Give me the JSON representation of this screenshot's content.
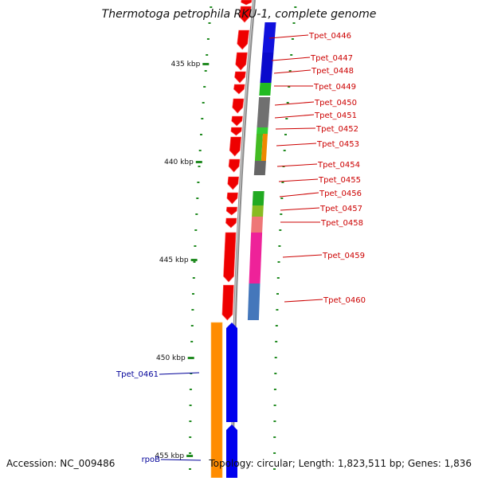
{
  "title": "Thermotoga petrophila RKU-1, complete genome",
  "accession": "Accession: NC_009486",
  "summary": "Topology: circular; Length: 1,823,511 bp; Genes: 1,836",
  "colors": {
    "forward_label": "#cc0000",
    "reverse_label": "#000099",
    "backbone": "#909090",
    "tick": "#228b22"
  },
  "ticks": [
    {
      "label": "435 kbp"
    },
    {
      "label": "440 kbp"
    },
    {
      "label": "445 kbp"
    },
    {
      "label": "450 kbp"
    },
    {
      "label": "455 kbp"
    }
  ],
  "forward_genes": [
    {
      "label": "Tpet_0446"
    },
    {
      "label": "Tpet_0447"
    },
    {
      "label": "Tpet_0448"
    },
    {
      "label": "Tpet_0449"
    },
    {
      "label": "Tpet_0450"
    },
    {
      "label": "Tpet_0451"
    },
    {
      "label": "Tpet_0452"
    },
    {
      "label": "Tpet_0453"
    },
    {
      "label": "Tpet_0454"
    },
    {
      "label": "Tpet_0455"
    },
    {
      "label": "Tpet_0456"
    },
    {
      "label": "Tpet_0457"
    },
    {
      "label": "Tpet_0458"
    },
    {
      "label": "Tpet_0459"
    },
    {
      "label": "Tpet_0460"
    }
  ],
  "reverse_genes": [
    {
      "label": "Tpet_0461"
    },
    {
      "label": "rpoB"
    }
  ]
}
